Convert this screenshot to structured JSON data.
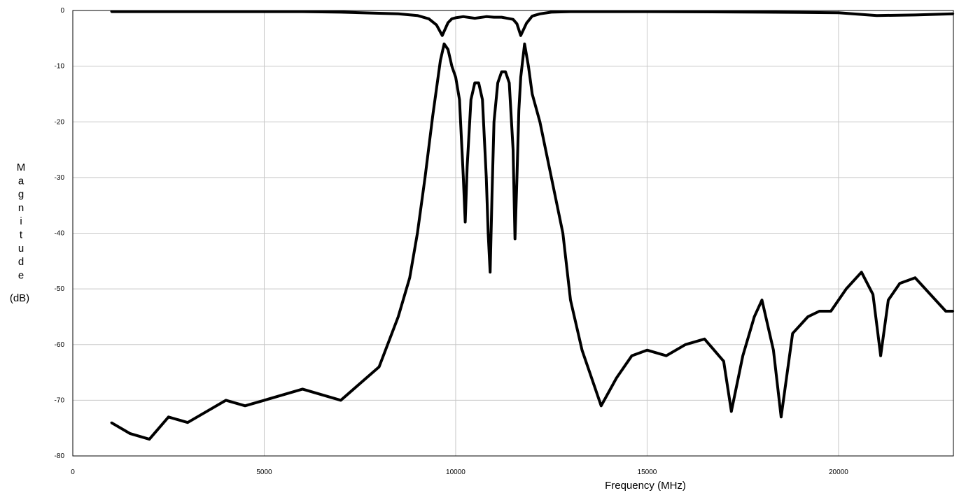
{
  "chart_data": {
    "type": "line",
    "title": "",
    "xlabel": "Frequency (MHz)",
    "ylabel_stacked": [
      "M",
      "a",
      "g",
      "n",
      "i",
      "t",
      "u",
      "d",
      "e"
    ],
    "ylabel_unit": "(dB)",
    "xlim": [
      0,
      23000
    ],
    "ylim": [
      -80,
      0
    ],
    "x_ticks": [
      "0",
      "5000",
      "10000",
      "15000",
      "20000"
    ],
    "y_ticks": [
      "0",
      "-10",
      "-20",
      "-30",
      "-40",
      "-50",
      "-60",
      "-70",
      "-80"
    ],
    "grid": true,
    "legend": "none",
    "series": [
      {
        "x": [
          1000,
          2000,
          3000,
          4000,
          5000,
          6000,
          7000,
          8000,
          8500,
          9000,
          9300,
          9500,
          9650,
          9800,
          9900,
          10000,
          10200,
          10500,
          10800,
          11000,
          11200,
          11500,
          11600,
          11700,
          11850,
          12000,
          12200,
          12500,
          13000,
          15000,
          18000,
          20000,
          21000,
          22000,
          23000
        ],
        "y": [
          -0.2,
          -0.2,
          -0.2,
          -0.2,
          -0.2,
          -0.2,
          -0.3,
          -0.5,
          -0.6,
          -0.9,
          -1.5,
          -2.6,
          -4.5,
          -2.2,
          -1.5,
          -1.3,
          -1.1,
          -1.4,
          -1.1,
          -1.2,
          -1.2,
          -1.6,
          -2.4,
          -4.5,
          -2.3,
          -1.0,
          -0.6,
          -0.3,
          -0.2,
          -0.2,
          -0.3,
          -0.4,
          -0.9,
          -0.8,
          -0.6
        ]
      },
      {
        "x": [
          1000,
          1500,
          2000,
          2500,
          3000,
          3500,
          4000,
          4500,
          5000,
          5500,
          6000,
          6500,
          7000,
          7500,
          8000,
          8500,
          8800,
          9000,
          9200,
          9400,
          9600,
          9700,
          9800,
          9900,
          10000,
          10100,
          10200,
          10250,
          10300,
          10400,
          10500,
          10600,
          10700,
          10800,
          10850,
          10900,
          10950,
          11000,
          11100,
          11200,
          11300,
          11400,
          11500,
          11550,
          11600,
          11650,
          11700,
          11800,
          11900,
          12000,
          12200,
          12500,
          12800,
          13000,
          13300,
          13600,
          13800,
          14200,
          14600,
          15000,
          15500,
          16000,
          16500,
          17000,
          17200,
          17500,
          17800,
          18000,
          18300,
          18500,
          18800,
          19200,
          19500,
          19800,
          20200,
          20600,
          20900,
          21100,
          21300,
          21600,
          22000,
          22400,
          22800,
          23000
        ],
        "y": [
          -74,
          -76,
          -77,
          -73,
          -74,
          -72,
          -70,
          -71,
          -70,
          -69,
          -68,
          -69,
          -70,
          -67,
          -64,
          -55,
          -48,
          -40,
          -30,
          -19,
          -9,
          -6,
          -7,
          -10,
          -12,
          -16,
          -30,
          -38,
          -28,
          -16,
          -13,
          -13,
          -16,
          -30,
          -40,
          -47,
          -33,
          -20,
          -13,
          -11,
          -11,
          -13,
          -25,
          -41,
          -30,
          -18,
          -12,
          -6,
          -10,
          -15,
          -20,
          -30,
          -40,
          -52,
          -61,
          -67,
          -71,
          -66,
          -62,
          -61,
          -62,
          -60,
          -59,
          -63,
          -72,
          -62,
          -55,
          -52,
          -61,
          -73,
          -58,
          -55,
          -54,
          -54,
          -50,
          -47,
          -51,
          -62,
          -52,
          -49,
          -48,
          -51,
          -54,
          -54
        ]
      }
    ]
  }
}
